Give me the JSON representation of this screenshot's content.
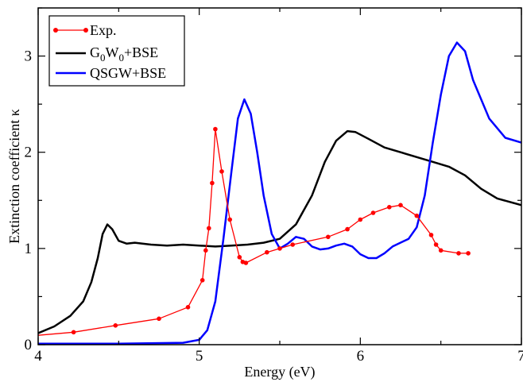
{
  "chart_data": {
    "type": "line",
    "xlabel": "Energy (eV)",
    "ylabel": "Extinction coefficient κ",
    "xlim": [
      4,
      7
    ],
    "ylim": [
      0,
      3.5
    ],
    "x_ticks": [
      "4",
      "5",
      "6",
      "7"
    ],
    "y_ticks": [
      "0",
      "1",
      "2",
      "3"
    ],
    "legend_position": "top-left",
    "series": [
      {
        "name": "Exp.",
        "color": "#ff0000",
        "marker": "circle",
        "points": [
          [
            3.95,
            0.09
          ],
          [
            4.22,
            0.13
          ],
          [
            4.48,
            0.2
          ],
          [
            4.75,
            0.27
          ],
          [
            4.93,
            0.39
          ],
          [
            5.02,
            0.67
          ],
          [
            5.04,
            0.98
          ],
          [
            5.06,
            1.21
          ],
          [
            5.08,
            1.68
          ],
          [
            5.1,
            2.24
          ],
          [
            5.14,
            1.8
          ],
          [
            5.19,
            1.3
          ],
          [
            5.25,
            0.91
          ],
          [
            5.27,
            0.86
          ],
          [
            5.29,
            0.85
          ],
          [
            5.42,
            0.96
          ],
          [
            5.5,
            1.0
          ],
          [
            5.58,
            1.04
          ],
          [
            5.8,
            1.12
          ],
          [
            5.92,
            1.2
          ],
          [
            6.0,
            1.3
          ],
          [
            6.08,
            1.37
          ],
          [
            6.18,
            1.43
          ],
          [
            6.25,
            1.45
          ],
          [
            6.35,
            1.34
          ],
          [
            6.44,
            1.14
          ],
          [
            6.47,
            1.04
          ],
          [
            6.5,
            0.98
          ],
          [
            6.61,
            0.95
          ],
          [
            6.67,
            0.95
          ]
        ]
      },
      {
        "name": "G0W0+BSE",
        "color": "#000000",
        "points": [
          [
            4.0,
            0.12
          ],
          [
            4.1,
            0.19
          ],
          [
            4.2,
            0.3
          ],
          [
            4.28,
            0.45
          ],
          [
            4.33,
            0.65
          ],
          [
            4.37,
            0.9
          ],
          [
            4.4,
            1.15
          ],
          [
            4.43,
            1.25
          ],
          [
            4.46,
            1.2
          ],
          [
            4.5,
            1.08
          ],
          [
            4.55,
            1.05
          ],
          [
            4.6,
            1.06
          ],
          [
            4.7,
            1.04
          ],
          [
            4.8,
            1.03
          ],
          [
            4.9,
            1.04
          ],
          [
            5.0,
            1.03
          ],
          [
            5.1,
            1.02
          ],
          [
            5.2,
            1.03
          ],
          [
            5.3,
            1.04
          ],
          [
            5.4,
            1.06
          ],
          [
            5.5,
            1.1
          ],
          [
            5.6,
            1.25
          ],
          [
            5.7,
            1.55
          ],
          [
            5.78,
            1.9
          ],
          [
            5.85,
            2.12
          ],
          [
            5.92,
            2.22
          ],
          [
            5.97,
            2.21
          ],
          [
            6.05,
            2.14
          ],
          [
            6.15,
            2.05
          ],
          [
            6.25,
            2.0
          ],
          [
            6.35,
            1.95
          ],
          [
            6.45,
            1.9
          ],
          [
            6.55,
            1.85
          ],
          [
            6.65,
            1.76
          ],
          [
            6.75,
            1.62
          ],
          [
            6.85,
            1.52
          ],
          [
            7.0,
            1.45
          ]
        ]
      },
      {
        "name": "QSGW+BSE",
        "color": "#0000ff",
        "points": [
          [
            4.0,
            0.01
          ],
          [
            4.5,
            0.01
          ],
          [
            4.9,
            0.02
          ],
          [
            5.0,
            0.05
          ],
          [
            5.05,
            0.15
          ],
          [
            5.1,
            0.45
          ],
          [
            5.15,
            1.1
          ],
          [
            5.2,
            1.8
          ],
          [
            5.24,
            2.35
          ],
          [
            5.28,
            2.55
          ],
          [
            5.32,
            2.4
          ],
          [
            5.36,
            2.0
          ],
          [
            5.4,
            1.55
          ],
          [
            5.45,
            1.15
          ],
          [
            5.5,
            1.0
          ],
          [
            5.55,
            1.05
          ],
          [
            5.6,
            1.12
          ],
          [
            5.65,
            1.1
          ],
          [
            5.7,
            1.02
          ],
          [
            5.75,
            0.99
          ],
          [
            5.8,
            1.0
          ],
          [
            5.85,
            1.03
          ],
          [
            5.9,
            1.05
          ],
          [
            5.95,
            1.02
          ],
          [
            6.0,
            0.94
          ],
          [
            6.05,
            0.9
          ],
          [
            6.1,
            0.9
          ],
          [
            6.15,
            0.95
          ],
          [
            6.2,
            1.02
          ],
          [
            6.3,
            1.1
          ],
          [
            6.35,
            1.22
          ],
          [
            6.4,
            1.55
          ],
          [
            6.45,
            2.1
          ],
          [
            6.5,
            2.6
          ],
          [
            6.55,
            3.0
          ],
          [
            6.6,
            3.14
          ],
          [
            6.65,
            3.05
          ],
          [
            6.7,
            2.75
          ],
          [
            6.8,
            2.35
          ],
          [
            6.9,
            2.15
          ],
          [
            7.0,
            2.1
          ]
        ]
      }
    ],
    "legend_entries": [
      {
        "main": "Exp."
      },
      {
        "parts": [
          "G",
          "0",
          "W",
          "0",
          "+BSE"
        ]
      },
      {
        "main": "QSGW+BSE"
      }
    ]
  }
}
